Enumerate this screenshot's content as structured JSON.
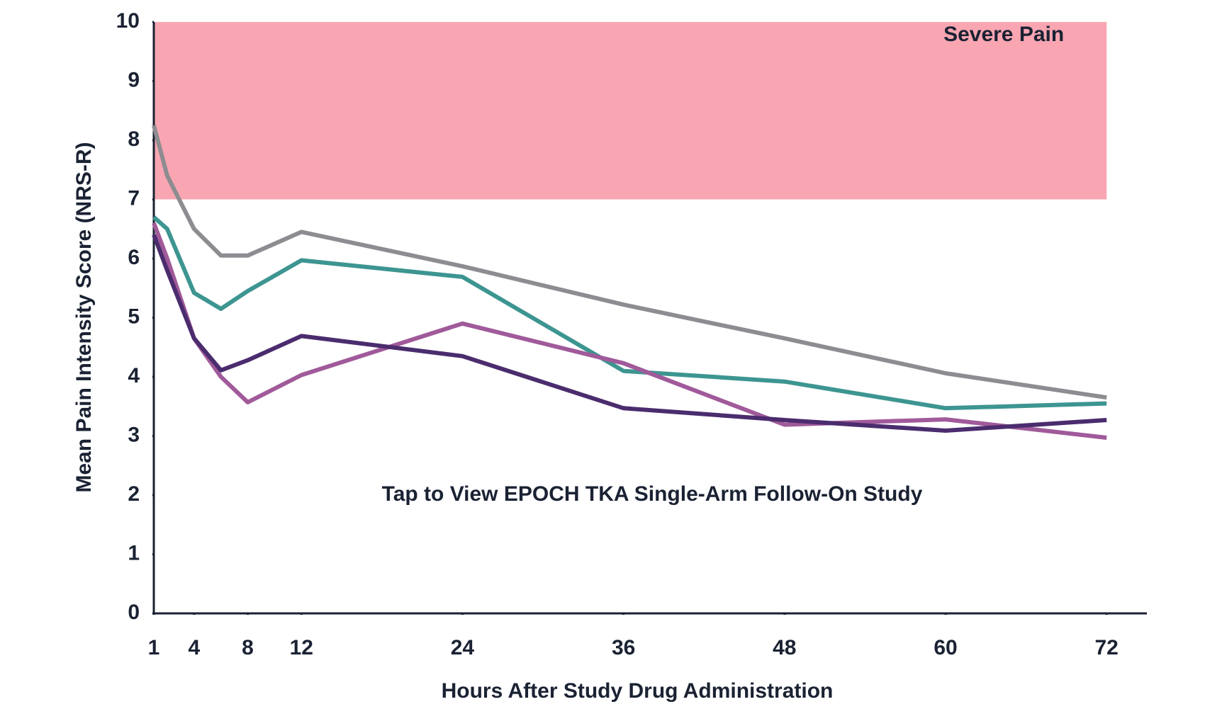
{
  "chart_data": {
    "type": "line",
    "xlabel": "Hours After Study Drug Administration",
    "ylabel": "Mean Pain Intensity Score (NRS-R)",
    "x": [
      1,
      2,
      4,
      6,
      8,
      12,
      24,
      36,
      48,
      60,
      72
    ],
    "series": [
      {
        "color": "#8e8c91",
        "values": [
          8.25,
          7.4,
          6.5,
          6.05,
          6.05,
          6.45,
          5.87,
          5.22,
          4.65,
          4.06,
          3.65
        ]
      },
      {
        "color": "#3d9591",
        "values": [
          6.7,
          6.5,
          5.42,
          5.15,
          5.45,
          5.97,
          5.69,
          4.1,
          3.92,
          3.47,
          3.55
        ]
      },
      {
        "color": "#a05a9a",
        "values": [
          6.6,
          6.0,
          4.65,
          4.0,
          3.57,
          4.03,
          4.9,
          4.23,
          3.19,
          3.28,
          2.97
        ]
      },
      {
        "color": "#4b2c6e",
        "values": [
          6.4,
          5.8,
          4.65,
          4.11,
          4.28,
          4.69,
          4.35,
          3.47,
          3.27,
          3.09,
          3.27
        ]
      }
    ],
    "bands": [
      {
        "from": 7,
        "to": 10,
        "x_to": 72,
        "label": "Severe Pain",
        "color": "#f9a6b2"
      }
    ],
    "annotation": "Tap to View EPOCH TKA Single-Arm Follow-On Study",
    "xlim": [
      1,
      75
    ],
    "ylim": [
      0,
      10
    ],
    "xticks": [
      1,
      4,
      8,
      12,
      24,
      36,
      48,
      60,
      72
    ],
    "yticks": [
      0,
      1,
      2,
      3,
      4,
      5,
      6,
      7,
      8,
      9,
      10
    ],
    "grid": false
  }
}
